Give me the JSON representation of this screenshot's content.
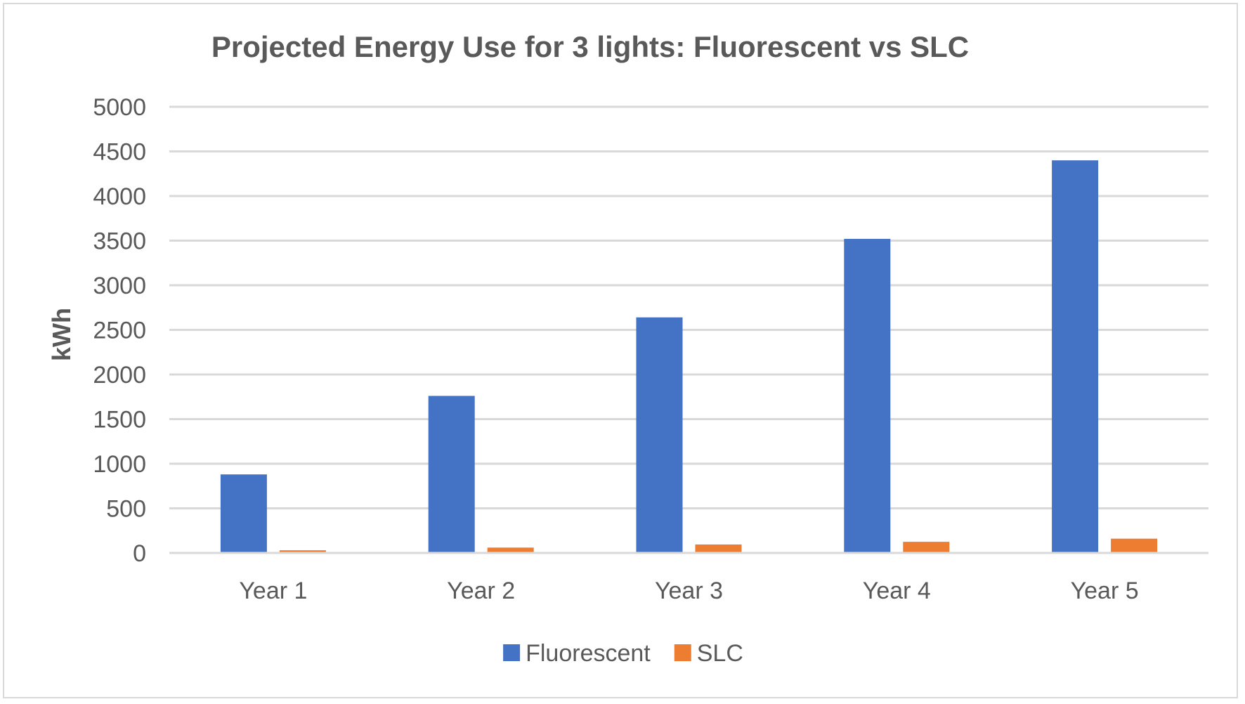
{
  "chart_data": {
    "type": "bar",
    "title": "Projected Energy Use for 3 lights: Fluorescent vs SLC",
    "xlabel": "",
    "ylabel": "kWh",
    "categories": [
      "Year 1",
      "Year 2",
      "Year 3",
      "Year 4",
      "Year 5"
    ],
    "ylim": [
      0,
      5000
    ],
    "yticks": [
      0,
      500,
      1000,
      1500,
      2000,
      2500,
      3000,
      3500,
      4000,
      4500,
      5000
    ],
    "grid": true,
    "legend_position": "bottom",
    "series": [
      {
        "name": "Fluorescent",
        "color": "#4472c4",
        "values": [
          880,
          1760,
          2640,
          3520,
          4400
        ]
      },
      {
        "name": "SLC",
        "color": "#ed7d31",
        "values": [
          30,
          60,
          95,
          125,
          160
        ]
      }
    ]
  }
}
